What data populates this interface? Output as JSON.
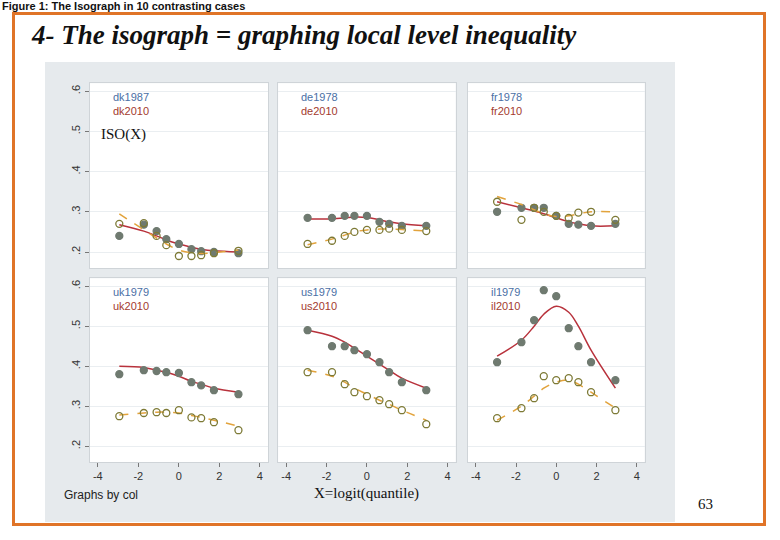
{
  "page": {
    "caption": "Figure 1: The Isograph in 10 contrasting cases",
    "title": "4- The isograph = graphing local level inequality",
    "y_label": "ISO(X)",
    "x_label": "X=logit(quantile)",
    "note": "Graphs by col",
    "page_number": 63
  },
  "chart_data": [
    {
      "type": "scatter",
      "legend": "top-left",
      "grid": true,
      "tick_labels": "y",
      "x": [
        -2.94,
        -1.73,
        -1.1,
        -0.62,
        0,
        0.62,
        1.1,
        1.73,
        2.94
      ],
      "xlim": [
        -4.4,
        4.4
      ],
      "xticks": [
        -4,
        -2,
        0,
        2,
        4
      ],
      "ylim": [
        0.16,
        0.62
      ],
      "yticks": [
        {
          "value": 0.2,
          "label": ".2"
        },
        {
          "value": 0.3,
          "label": ".3"
        },
        {
          "value": 0.4,
          "label": ".4"
        },
        {
          "value": 0.5,
          "label": ".5"
        },
        {
          "value": 0.6,
          "label": ".6"
        }
      ],
      "series": [
        {
          "name": "dk1987",
          "marker": "circle",
          "color": "#b8323c",
          "line_style": "solid",
          "values": [
            0.24,
            0.268,
            0.252,
            0.232,
            0.22,
            0.207,
            0.202,
            0.2,
            0.197
          ],
          "fit": [
            0.268,
            0.252,
            0.24,
            0.23,
            0.22,
            0.212,
            0.207,
            0.203,
            0.2
          ]
        },
        {
          "name": "dk2010",
          "marker": "circle-open",
          "color": "#e2a33c",
          "line_style": "dash",
          "values": [
            0.27,
            0.272,
            0.24,
            0.217,
            0.19,
            0.19,
            0.192,
            0.197,
            0.203
          ],
          "fit": [
            0.295,
            0.255,
            0.235,
            0.22,
            0.205,
            0.198,
            0.196,
            0.198,
            0.205
          ]
        }
      ]
    },
    {
      "type": "scatter",
      "legend": "top-left",
      "grid": true,
      "tick_labels": false,
      "x": [
        -2.94,
        -1.73,
        -1.1,
        -0.62,
        0,
        0.62,
        1.1,
        1.73,
        2.94
      ],
      "xlim": [
        -4.4,
        4.4
      ],
      "xticks": [
        -4,
        -2,
        0,
        2,
        4
      ],
      "ylim": [
        0.16,
        0.62
      ],
      "yticks": [
        {
          "value": 0.2,
          "label": ".2"
        },
        {
          "value": 0.3,
          "label": ".3"
        },
        {
          "value": 0.4,
          "label": ".4"
        },
        {
          "value": 0.5,
          "label": ".5"
        },
        {
          "value": 0.6,
          "label": ".6"
        }
      ],
      "series": [
        {
          "name": "de1978",
          "marker": "circle",
          "color": "#b8323c",
          "line_style": "solid",
          "values": [
            0.285,
            0.285,
            0.29,
            0.29,
            0.29,
            0.275,
            0.27,
            0.265,
            0.265
          ],
          "fit": [
            0.282,
            0.283,
            0.285,
            0.287,
            0.286,
            0.28,
            0.275,
            0.27,
            0.265
          ]
        },
        {
          "name": "de2010",
          "marker": "circle-open",
          "color": "#e2a33c",
          "line_style": "dash",
          "values": [
            0.22,
            0.228,
            0.24,
            0.25,
            0.255,
            0.255,
            0.258,
            0.255,
            0.252
          ],
          "fit": [
            0.218,
            0.232,
            0.242,
            0.25,
            0.255,
            0.257,
            0.257,
            0.256,
            0.252
          ]
        }
      ]
    },
    {
      "type": "scatter",
      "legend": "top-left",
      "grid": true,
      "tick_labels": false,
      "x": [
        -2.94,
        -1.73,
        -1.1,
        -0.62,
        0,
        0.62,
        1.1,
        1.73,
        2.94
      ],
      "xlim": [
        -4.4,
        4.4
      ],
      "xticks": [
        -4,
        -2,
        0,
        2,
        4
      ],
      "ylim": [
        0.16,
        0.62
      ],
      "yticks": [
        {
          "value": 0.2,
          "label": ".2"
        },
        {
          "value": 0.3,
          "label": ".3"
        },
        {
          "value": 0.4,
          "label": ".4"
        },
        {
          "value": 0.5,
          "label": ".5"
        },
        {
          "value": 0.6,
          "label": ".6"
        }
      ],
      "series": [
        {
          "name": "fr1978",
          "marker": "circle",
          "color": "#b8323c",
          "line_style": "solid",
          "values": [
            0.3,
            0.31,
            0.31,
            0.31,
            0.29,
            0.27,
            0.268,
            0.265,
            0.27
          ],
          "fit": [
            0.325,
            0.31,
            0.302,
            0.295,
            0.285,
            0.275,
            0.27,
            0.265,
            0.265
          ]
        },
        {
          "name": "fr2010",
          "marker": "circle-open",
          "color": "#e2a33c",
          "line_style": "dash",
          "values": [
            0.325,
            0.28,
            0.31,
            0.3,
            0.29,
            0.285,
            0.298,
            0.3,
            0.28
          ],
          "fit": [
            0.338,
            0.318,
            0.305,
            0.295,
            0.288,
            0.29,
            0.295,
            0.3,
            0.3
          ]
        }
      ]
    },
    {
      "type": "scatter",
      "legend": "top-left",
      "grid": true,
      "tick_labels": true,
      "x": [
        -2.94,
        -1.73,
        -1.1,
        -0.62,
        0,
        0.62,
        1.1,
        1.73,
        2.94
      ],
      "xlim": [
        -4.4,
        4.4
      ],
      "xticks": [
        -4,
        -2,
        0,
        2,
        4
      ],
      "ylim": [
        0.16,
        0.62
      ],
      "yticks": [
        {
          "value": 0.2,
          "label": ".2"
        },
        {
          "value": 0.3,
          "label": ".3"
        },
        {
          "value": 0.4,
          "label": ".4"
        },
        {
          "value": 0.5,
          "label": ".5"
        },
        {
          "value": 0.6,
          "label": ".6"
        }
      ],
      "series": [
        {
          "name": "uk1979",
          "marker": "circle",
          "color": "#b8323c",
          "line_style": "solid",
          "values": [
            0.38,
            0.39,
            0.388,
            0.385,
            0.383,
            0.36,
            0.352,
            0.34,
            0.33
          ],
          "fit": [
            0.4,
            0.397,
            0.39,
            0.385,
            0.375,
            0.362,
            0.355,
            0.345,
            0.335
          ]
        },
        {
          "name": "uk2010",
          "marker": "circle-open",
          "color": "#e2a33c",
          "line_style": "dash",
          "values": [
            0.275,
            0.283,
            0.285,
            0.283,
            0.29,
            0.272,
            0.27,
            0.26,
            0.24
          ],
          "fit": [
            0.278,
            0.283,
            0.285,
            0.285,
            0.283,
            0.277,
            0.272,
            0.265,
            0.25
          ]
        }
      ]
    },
    {
      "type": "scatter",
      "legend": "top-left",
      "grid": true,
      "tick_labels": "x",
      "x": [
        -2.94,
        -1.73,
        -1.1,
        -0.62,
        0,
        0.62,
        1.1,
        1.73,
        2.94
      ],
      "xlim": [
        -4.4,
        4.4
      ],
      "xticks": [
        -4,
        -2,
        0,
        2,
        4
      ],
      "ylim": [
        0.16,
        0.62
      ],
      "yticks": [
        {
          "value": 0.2,
          "label": ".2"
        },
        {
          "value": 0.3,
          "label": ".3"
        },
        {
          "value": 0.4,
          "label": ".4"
        },
        {
          "value": 0.5,
          "label": ".5"
        },
        {
          "value": 0.6,
          "label": ".6"
        }
      ],
      "series": [
        {
          "name": "us1979",
          "marker": "circle",
          "color": "#b8323c",
          "line_style": "solid",
          "values": [
            0.49,
            0.45,
            0.45,
            0.44,
            0.43,
            0.41,
            0.385,
            0.36,
            0.34
          ],
          "fit": [
            0.49,
            0.475,
            0.46,
            0.445,
            0.425,
            0.405,
            0.39,
            0.37,
            0.345
          ]
        },
        {
          "name": "us2010",
          "marker": "circle-open",
          "color": "#e2a33c",
          "line_style": "dash",
          "values": [
            0.385,
            0.385,
            0.355,
            0.335,
            0.325,
            0.315,
            0.305,
            0.29,
            0.255
          ],
          "fit": [
            0.39,
            0.375,
            0.36,
            0.345,
            0.33,
            0.315,
            0.305,
            0.29,
            0.265
          ]
        }
      ]
    },
    {
      "type": "scatter",
      "legend": "top-left",
      "grid": true,
      "tick_labels": "x",
      "x": [
        -2.94,
        -1.73,
        -1.1,
        -0.62,
        0,
        0.62,
        1.1,
        1.73,
        2.94
      ],
      "xlim": [
        -4.4,
        4.4
      ],
      "xticks": [
        -4,
        -2,
        0,
        2,
        4
      ],
      "ylim": [
        0.16,
        0.62
      ],
      "yticks": [
        {
          "value": 0.2,
          "label": ".2"
        },
        {
          "value": 0.3,
          "label": ".3"
        },
        {
          "value": 0.4,
          "label": ".4"
        },
        {
          "value": 0.5,
          "label": ".5"
        },
        {
          "value": 0.6,
          "label": ".6"
        }
      ],
      "series": [
        {
          "name": "il1979",
          "marker": "circle",
          "color": "#b8323c",
          "line_style": "solid",
          "values": [
            0.41,
            0.46,
            0.515,
            0.59,
            0.575,
            0.495,
            0.45,
            0.41,
            0.365
          ],
          "fit": [
            0.425,
            0.465,
            0.5,
            0.53,
            0.55,
            0.535,
            0.5,
            0.44,
            0.345
          ]
        },
        {
          "name": "il2010",
          "marker": "circle-open",
          "color": "#e2a33c",
          "line_style": "dash",
          "values": [
            0.27,
            0.295,
            0.32,
            0.375,
            0.365,
            0.37,
            0.36,
            0.335,
            0.29
          ],
          "fit": [
            0.265,
            0.3,
            0.325,
            0.345,
            0.36,
            0.365,
            0.355,
            0.335,
            0.295
          ]
        }
      ]
    }
  ]
}
